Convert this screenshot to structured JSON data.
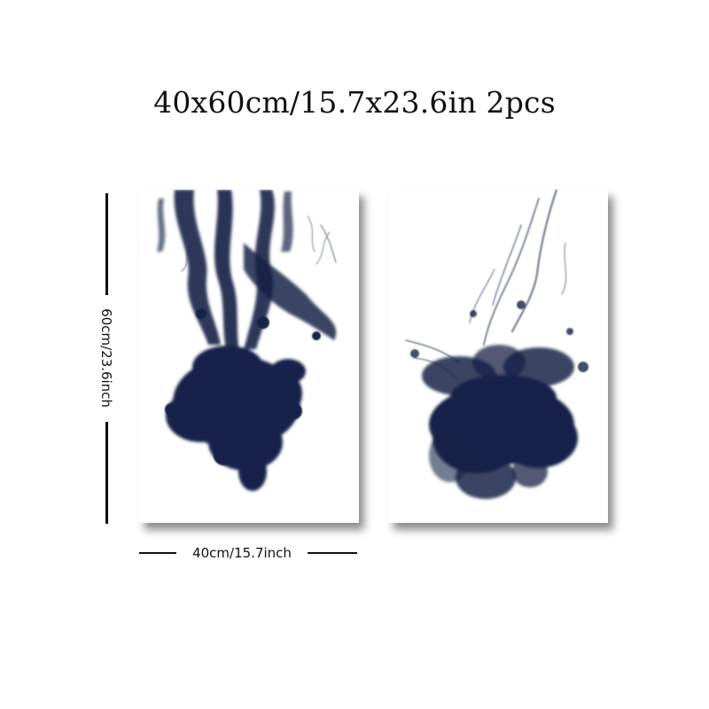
{
  "headline": "40x60cm/15.7x23.6in 2pcs",
  "dimensions": {
    "height_label": "60cm/23.6inch",
    "width_label": "40cm/15.7inch"
  },
  "artwork": {
    "ink_color": "#172448",
    "background_color": "#ffffff",
    "panels": [
      "ink-smoke-left",
      "ink-smoke-right"
    ]
  }
}
